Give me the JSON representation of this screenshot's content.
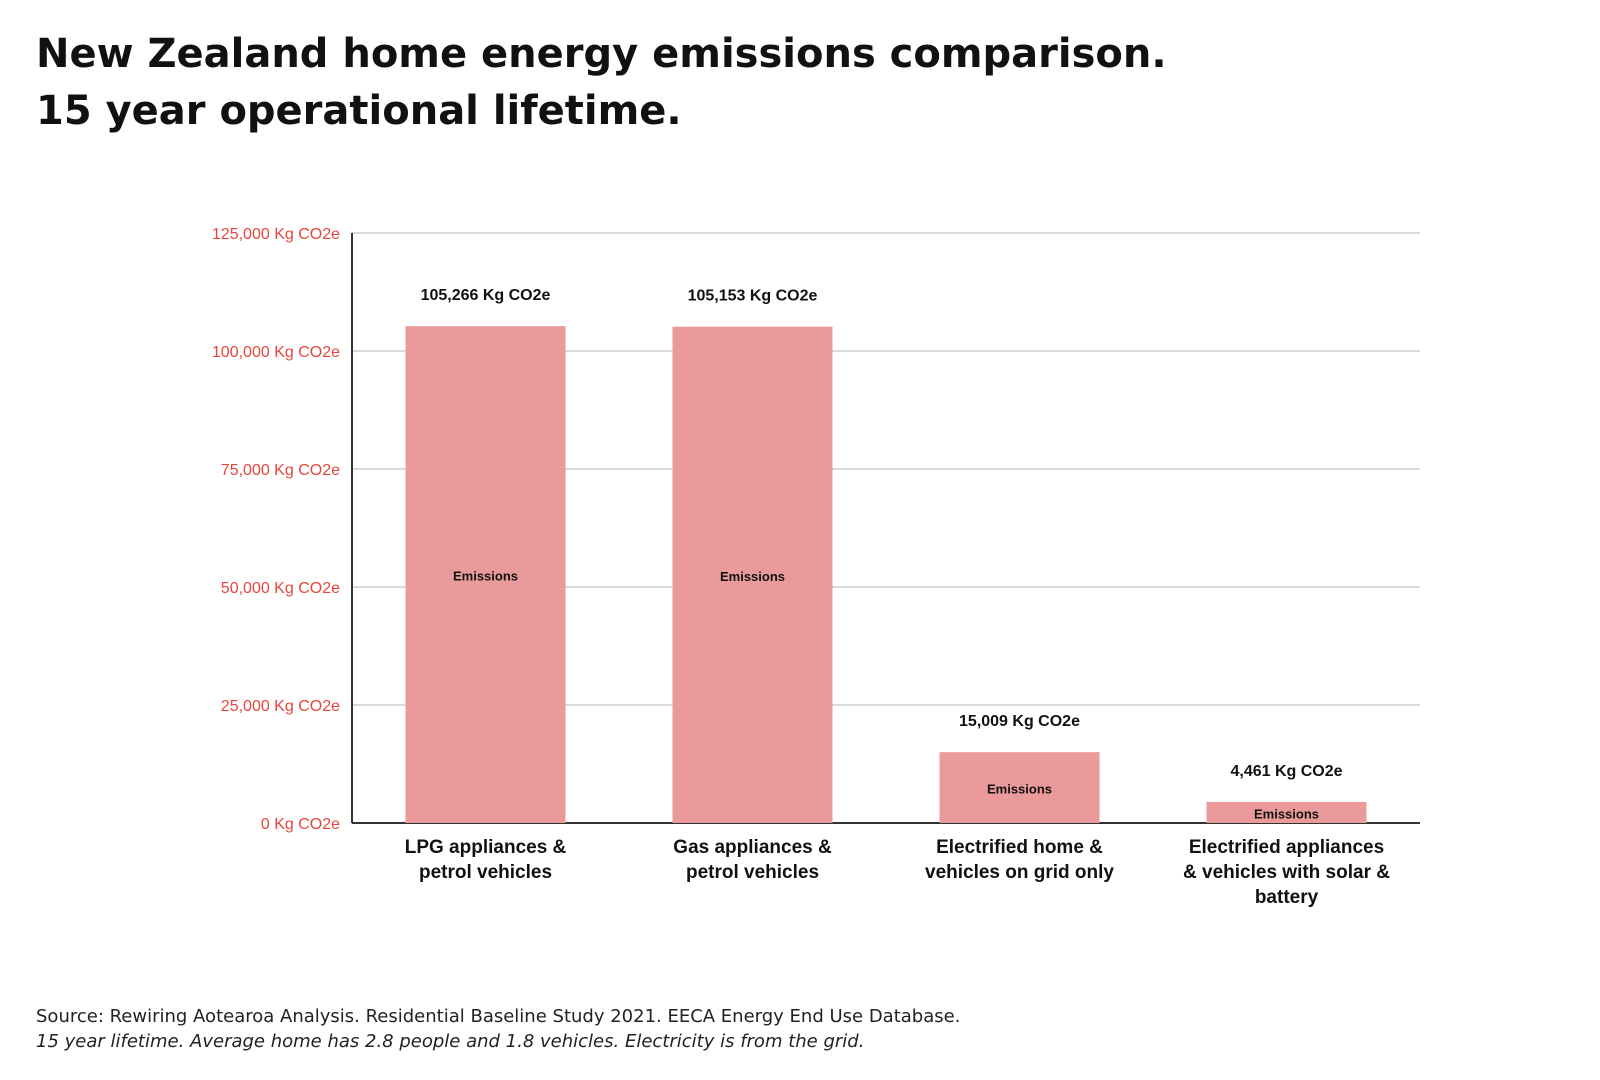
{
  "title_line1": "New Zealand home energy emissions comparison.",
  "title_line2": "15 year operational lifetime.",
  "footer": {
    "source": "Source: Rewiring Aotearoa Analysis. Residential Baseline Study 2021. EECA Energy End Use Database.",
    "note": "15 year lifetime. Average home has 2.8 people and 1.8 vehicles. Electricity is from the grid."
  },
  "colors": {
    "bar": "#ea9a9a",
    "tick_label": "#e8453c",
    "grid": "#d9d9d9",
    "axis": "#333333"
  },
  "chart_data": {
    "type": "bar",
    "title": "New Zealand home energy emissions comparison. 15 year operational lifetime.",
    "xlabel": "",
    "ylabel": "",
    "ylim": [
      0,
      125000
    ],
    "y_ticks": [
      0,
      25000,
      50000,
      75000,
      100000,
      125000
    ],
    "y_tick_labels": [
      "0 Kg CO2e",
      "25,000 Kg CO2e",
      "50,000 Kg CO2e",
      "75,000 Kg CO2e",
      "100,000 Kg CO2e",
      "125,000 Kg CO2e"
    ],
    "grid": true,
    "categories": [
      [
        "LPG appliances &",
        "petrol vehicles"
      ],
      [
        "Gas appliances &",
        "petrol vehicles"
      ],
      [
        "Electrified home &",
        "vehicles on grid only"
      ],
      [
        "Electrified appliances",
        "& vehicles with solar &",
        "battery"
      ]
    ],
    "series": [
      {
        "name": "Emissions",
        "values": [
          105266,
          105153,
          15009,
          4461
        ],
        "data_labels": [
          "105,266 Kg CO2e",
          "105,153 Kg CO2e",
          "15,009 Kg CO2e",
          "4,461 Kg CO2e"
        ]
      }
    ]
  }
}
